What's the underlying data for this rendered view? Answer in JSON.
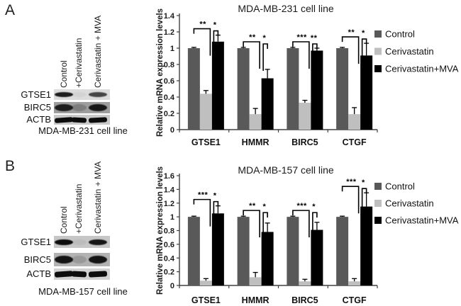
{
  "figure": {
    "panels": [
      {
        "letter": "A",
        "blot": {
          "lane_labels": [
            "Control",
            "+Cerivastatin",
            "Cerivastatin + MVA"
          ],
          "rows": [
            {
              "label": "GTSE1",
              "bg": "#dcdcdc",
              "bands": [
                0.92,
                0.04,
                0.72
              ]
            },
            {
              "label": "BIRC5",
              "bg": "#9e9e9e",
              "bands": [
                0.88,
                0.22,
                0.92
              ]
            },
            {
              "label": "ACTB",
              "bg": "#c9c9c9",
              "bands": [
                1,
                1,
                1
              ]
            }
          ],
          "caption": "MDA-MB-231 cell line"
        }
      },
      {
        "letter": "B",
        "blot": {
          "lane_labels": [
            "Control",
            "+Cerivastatin",
            "Cerivastatin + MVA"
          ],
          "rows": [
            {
              "label": "GTSE1",
              "bg": "#c6c6c6",
              "bands": [
                1,
                0.05,
                0.95
              ]
            },
            {
              "label": "BIRC5",
              "bg": "#b3b3b3",
              "bands": [
                0.95,
                0.15,
                0.95
              ]
            },
            {
              "label": "ACTB",
              "bg": "#d2d2d2",
              "bands": [
                1,
                1,
                1
              ]
            }
          ],
          "caption": "MDA-MB-157 cell line"
        }
      }
    ]
  },
  "chart_data": [
    {
      "type": "bar",
      "title": "MDA-MB-231 cell line",
      "ylabel": "Relative mRNA expression levels",
      "xlabel": "",
      "ylim": [
        0,
        1.4
      ],
      "ytick_step": 0.2,
      "yticks": [
        "0",
        "0.2",
        "0.4",
        "0.6",
        "0.8",
        "1",
        "1.2",
        "1.4"
      ],
      "grid": false,
      "legend_position": "right",
      "categories": [
        "GTSE1",
        "HMMR",
        "BIRC5",
        "CTGF"
      ],
      "series": [
        {
          "name": "Control",
          "color": "#595959",
          "values": [
            1.0,
            1.0,
            1.0,
            1.0
          ],
          "errors": [
            0.01,
            0.01,
            0.01,
            0.01
          ]
        },
        {
          "name": "Cerivastatin",
          "color": "#bfbfbf",
          "values": [
            0.44,
            0.19,
            0.33,
            0.19
          ],
          "errors": [
            0.04,
            0.07,
            0.03,
            0.08
          ]
        },
        {
          "name": "Cerivastatin+MVA",
          "color": "#000000",
          "values": [
            1.08,
            0.63,
            0.97,
            0.91
          ],
          "errors": [
            0.08,
            0.11,
            0.03,
            0.15
          ]
        }
      ],
      "significance": [
        [
          "**",
          "*"
        ],
        [
          "**",
          "*"
        ],
        [
          "***",
          "**"
        ],
        [
          "**",
          "*"
        ]
      ]
    },
    {
      "type": "bar",
      "title": "MDA-MB-157 cell line",
      "ylabel": "Relative mRNA expression levels",
      "xlabel": "",
      "ylim": [
        0,
        1.6
      ],
      "ytick_step": 0.2,
      "yticks": [
        "0",
        "0.2",
        "0.4",
        "0.6",
        "0.8",
        "1",
        "1.2",
        "1.4",
        "1.6"
      ],
      "grid": false,
      "legend_position": "right",
      "categories": [
        "GTSE1",
        "HMMR",
        "BIRC5",
        "CTGF"
      ],
      "series": [
        {
          "name": "Control",
          "color": "#595959",
          "values": [
            1.0,
            1.0,
            1.0,
            1.0
          ],
          "errors": [
            0.01,
            0.01,
            0.01,
            0.01
          ]
        },
        {
          "name": "Cerivastatin",
          "color": "#bfbfbf",
          "values": [
            0.07,
            0.12,
            0.06,
            0.06
          ],
          "errors": [
            0.03,
            0.07,
            0.03,
            0.04
          ]
        },
        {
          "name": "Cerivastatin+MVA",
          "color": "#000000",
          "values": [
            1.05,
            0.78,
            0.81,
            1.15
          ],
          "errors": [
            0.11,
            0.13,
            0.11,
            0.2
          ]
        }
      ],
      "significance": [
        [
          "***",
          "*"
        ],
        [
          "**",
          "*"
        ],
        [
          "***",
          "*"
        ],
        [
          "***",
          "*"
        ]
      ]
    }
  ]
}
